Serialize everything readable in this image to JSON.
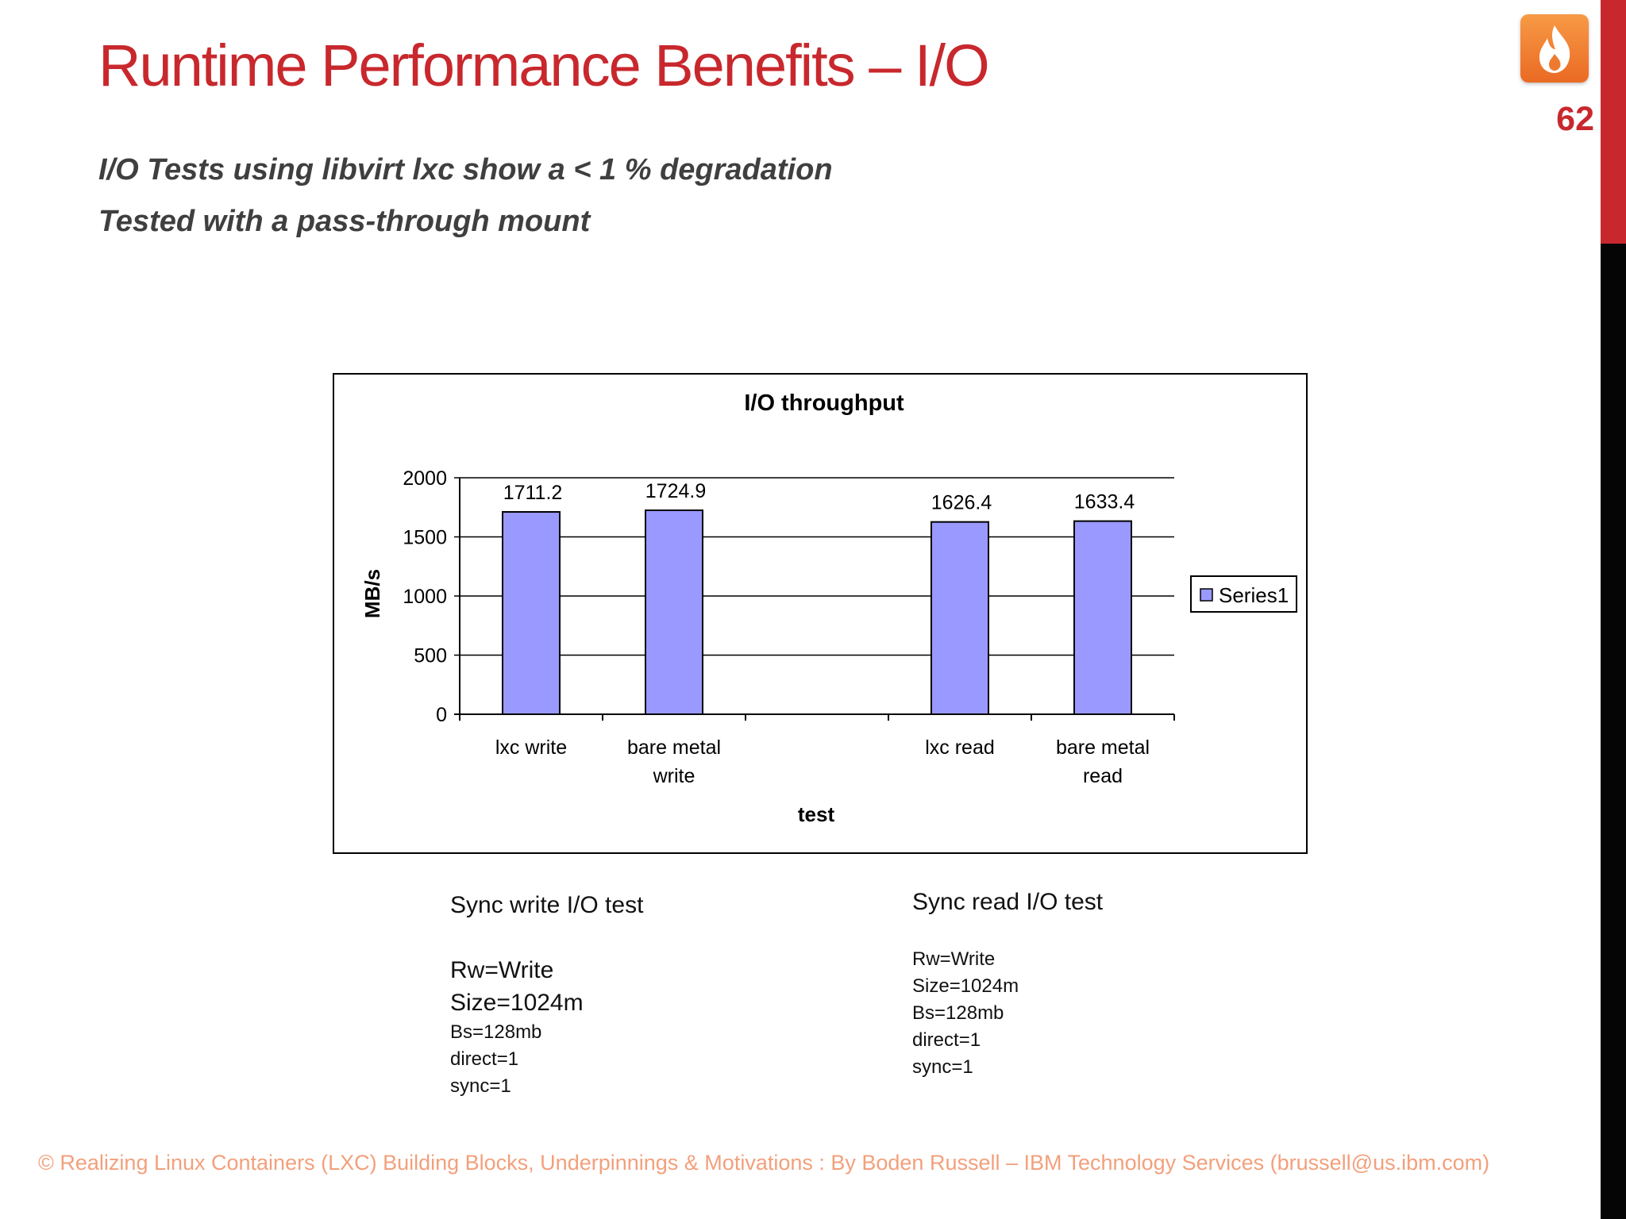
{
  "slide": {
    "title": "Runtime Performance Benefits – I/O",
    "page_number": "62",
    "subtitle_1": "I/O Tests using libvirt lxc show a < 1 % degradation",
    "subtitle_2": "Tested with a pass-through mount",
    "footer": "© Realizing Linux Containers (LXC) Building Blocks, Underpinnings & Motivations : By Boden Russell – IBM Technology Services (brussell@us.ibm.com)",
    "logo_icon": "flame-icon"
  },
  "write_notes": {
    "heading": "Sync write I/O test",
    "rw": "Rw=Write",
    "size": "Size=1024m",
    "bs": "Bs=128mb",
    "direct": "direct=1",
    "sync": "sync=1"
  },
  "read_notes": {
    "heading": "Sync read I/O test",
    "rw": "Rw=Write",
    "size": "Size=1024m",
    "bs": "Bs=128mb",
    "direct": "direct=1",
    "sync": "sync=1"
  },
  "colors": {
    "accent": "#c8282d",
    "bar_fill": "#9999ff",
    "footer_text": "#f2a07c"
  },
  "chart_data": {
    "type": "bar",
    "title": "I/O throughput",
    "xlabel": "test",
    "ylabel": "MB/s",
    "ylim": [
      0,
      2000
    ],
    "yticks": [
      0,
      500,
      1000,
      1500,
      2000
    ],
    "grid": true,
    "legend_position": "right",
    "categories": [
      [
        "lxc write"
      ],
      [
        "bare metal",
        "write"
      ],
      [
        ""
      ],
      [
        "lxc read"
      ],
      [
        "bare metal",
        "read"
      ]
    ],
    "series": [
      {
        "name": "Series1",
        "values": [
          1711.2,
          1724.9,
          null,
          1626.4,
          1633.4
        ],
        "labels": [
          "1711.2",
          "1724.9",
          "",
          "1626.4",
          "1633.4"
        ]
      }
    ]
  }
}
